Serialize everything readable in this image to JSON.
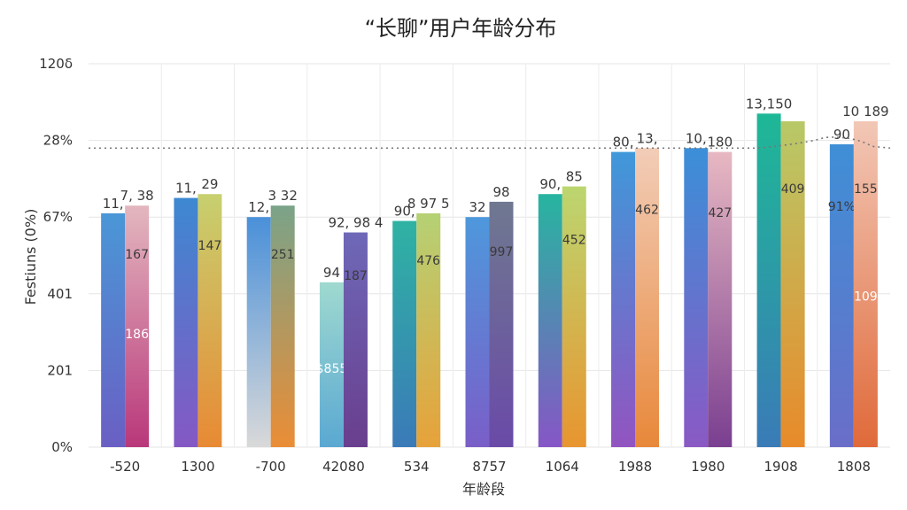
{
  "chart_data": {
    "type": "bar",
    "title": "“长聊”用户年龄分布",
    "xlabel": "年龄段",
    "ylabel": "Festiuns (0%)",
    "ylim": [
      0,
      100
    ],
    "y_tick_labels": [
      "0%",
      "201",
      "401",
      "67%",
      "28%",
      "120δ"
    ],
    "grid": true,
    "legend": "none",
    "reference_line": {
      "value": 78,
      "style": "dotted"
    },
    "categories": [
      "-520",
      "1300",
      "-700",
      "42080",
      "534",
      "8757",
      "1064",
      "1988",
      "1980",
      "1908",
      "1808"
    ],
    "series": [
      {
        "values": [
          61,
          65,
          60,
          43,
          59,
          60,
          66,
          77,
          78,
          87,
          79
        ]
      },
      {
        "values": [
          63,
          66,
          63,
          56,
          61,
          64,
          68,
          78,
          77,
          85,
          85
        ]
      }
    ],
    "bar_labels_top": [
      [
        "11,",
        "7, 38"
      ],
      [
        "11,",
        "29"
      ],
      [
        "12,",
        "3 32"
      ],
      [
        "94",
        "92, 98 4"
      ],
      [
        "90,",
        "8 97 5"
      ],
      [
        "32",
        "98"
      ],
      [
        "90,",
        "85"
      ],
      [
        "80,",
        "13,"
      ],
      [
        "10,",
        "180"
      ],
      [
        "13,150",
        ""
      ],
      [
        "90",
        "10 189"
      ]
    ],
    "bar_labels_mid": [
      [
        "",
        "167"
      ],
      [
        "",
        "147"
      ],
      [
        "",
        "251"
      ],
      [
        "",
        "187"
      ],
      [
        "",
        "476"
      ],
      [
        "",
        "997"
      ],
      [
        "",
        "452"
      ],
      [
        "",
        "462"
      ],
      [
        "",
        "427"
      ],
      [
        "",
        "409"
      ],
      [
        "91%",
        "155"
      ]
    ],
    "bar_labels_low": [
      [
        "",
        "186"
      ],
      [
        "",
        ""
      ],
      [
        "",
        ""
      ],
      [
        "$855",
        ""
      ],
      [
        "",
        ""
      ],
      [
        "",
        ""
      ],
      [
        "",
        ""
      ],
      [
        "",
        ""
      ],
      [
        "",
        ""
      ],
      [
        "",
        ""
      ],
      [
        "",
        "109"
      ]
    ],
    "colors": {
      "group_tops": [
        [
          "#4a97d6",
          "#e3b7bf"
        ],
        [
          "#3d88d1",
          "#c7d06f"
        ],
        [
          "#4a90d9",
          "#7aa389"
        ],
        [
          "#9fd9d0",
          "#6e68b8"
        ],
        [
          "#2fb3a3",
          "#b5d175"
        ],
        [
          "#4e98dc",
          "#6f7890"
        ],
        [
          "#27b5a0",
          "#bcd670"
        ],
        [
          "#3f98da",
          "#f2cdb8"
        ],
        [
          "#3b8fd8",
          "#e7b8c2"
        ],
        [
          "#1eb897",
          "#b8c968"
        ],
        [
          "#3f8fd6",
          "#f2c7b6"
        ]
      ],
      "group_bottoms": [
        [
          "#6a5fc4",
          "#b9377a"
        ],
        [
          "#8558c4",
          "#e88a34"
        ],
        [
          "#d9d9d9",
          "#ea8d36"
        ],
        [
          "#5aa8d2",
          "#6a3e8e"
        ],
        [
          "#3a7ab8",
          "#e7a23a"
        ],
        [
          "#7a5ec8",
          "#6a4aa8"
        ],
        [
          "#8656c6",
          "#e8952f"
        ],
        [
          "#9254c0",
          "#e8883a"
        ],
        [
          "#8a59c4",
          "#7a3f90"
        ],
        [
          "#3a7bb7",
          "#e88a2a"
        ],
        [
          "#6a6ec8",
          "#e06a3a"
        ]
      ]
    }
  }
}
